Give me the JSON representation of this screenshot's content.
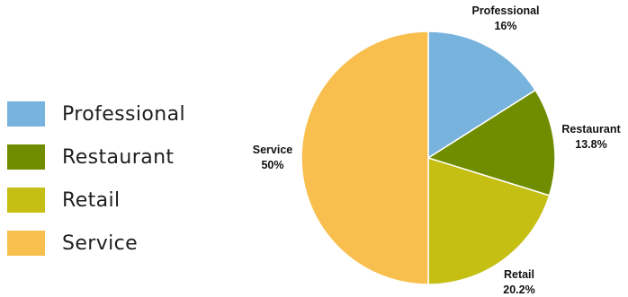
{
  "chart_data": {
    "type": "pie",
    "slices": [
      {
        "label": "Professional",
        "value": 16,
        "value_label": "16%",
        "color": "#78b3dd"
      },
      {
        "label": "Restaurant",
        "value": 13.8,
        "value_label": "13.8%",
        "color": "#708d00"
      },
      {
        "label": "Retail",
        "value": 20.2,
        "value_label": "20.2%",
        "color": "#c4bf12"
      },
      {
        "label": "Service",
        "value": 50,
        "value_label": "50%",
        "color": "#f8bf4e"
      }
    ],
    "start_angle": "12 o'clock",
    "direction": "clockwise",
    "legend_position": "left"
  }
}
